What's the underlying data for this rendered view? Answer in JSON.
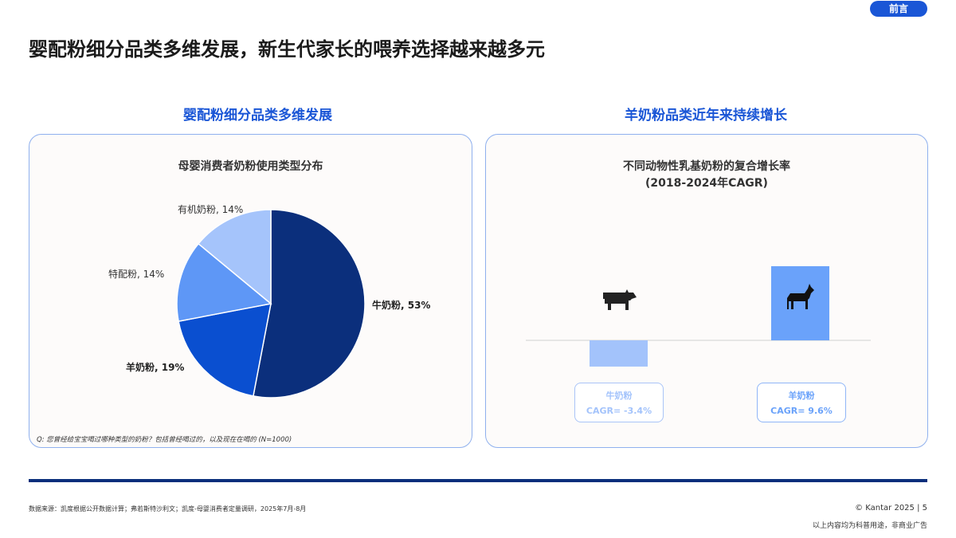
{
  "header": {
    "tag": "前言",
    "title": "婴配粉细分品类多维发展，新生代家长的喂养选择越来越多元"
  },
  "left": {
    "subtitle": "婴配粉细分品类多维发展",
    "footnote": "Q: 您曾经给宝宝喝过哪种类型的奶粉？包括曾经喝过的，以及现在在喝的 (N=1000)"
  },
  "right": {
    "subtitle": "羊奶粉品类近年来持续增长"
  },
  "footer": {
    "source": "数据来源：凯度根据公开数据计算；弗若斯特沙利文；凯度-母婴消费者定量调研，2025年7月-8月",
    "copyright": "© Kantar 2025 | 5",
    "disclaimer": "以上内容均为科普用途，非商业广告"
  },
  "chart_data": [
    {
      "type": "pie",
      "title": "母婴消费者奶粉使用类型分布",
      "slices": [
        {
          "label": "牛奶粉, 53%",
          "name": "牛奶粉",
          "value": 53,
          "color": "#0b2f7c"
        },
        {
          "label": "羊奶粉, 19%",
          "name": "羊奶粉",
          "value": 19,
          "color": "#0a4fd0"
        },
        {
          "label": "特配粉, 14%",
          "name": "特配粉",
          "value": 14,
          "color": "#5e97f6"
        },
        {
          "label": "有机奶粉, 14%",
          "name": "有机奶粉",
          "value": 14,
          "color": "#a5c4fb"
        }
      ]
    },
    {
      "type": "bar",
      "title": "不同动物性乳基奶粉的复合增长率",
      "subtitle": "(2018-2024年CAGR)",
      "categories": [
        "牛奶粉",
        "羊奶粉"
      ],
      "values": [
        -3.4,
        9.6
      ],
      "value_labels": [
        "CAGR= -3.4%",
        "CAGR= 9.6%"
      ],
      "colors": [
        "#a3c3fb",
        "#6aa2fa"
      ],
      "icons": [
        "cow-icon",
        "goat-icon"
      ]
    }
  ]
}
